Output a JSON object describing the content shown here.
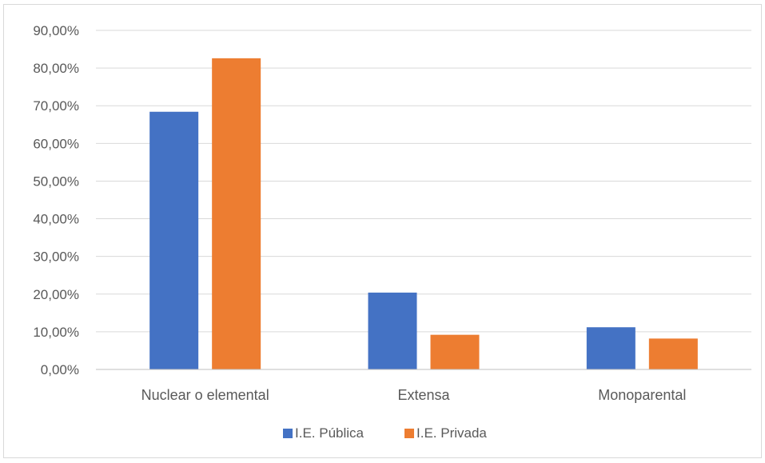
{
  "chart_data": {
    "type": "bar",
    "title": "",
    "xlabel": "",
    "ylabel": "",
    "categories": [
      "Nuclear o elemental",
      "Extensa",
      "Monoparental"
    ],
    "series": [
      {
        "name": "I.E. Pública",
        "color": "#4472c4",
        "values": [
          68.4,
          20.4,
          11.2
        ]
      },
      {
        "name": "I.E. Privada",
        "color": "#ed7d31",
        "values": [
          82.6,
          9.2,
          8.2
        ]
      }
    ],
    "ylim": [
      0,
      90
    ],
    "yticks": [
      0,
      10,
      20,
      30,
      40,
      50,
      60,
      70,
      80,
      90
    ],
    "ytick_labels": [
      "0,00%",
      "10,00%",
      "20,00%",
      "30,00%",
      "40,00%",
      "50,00%",
      "60,00%",
      "70,00%",
      "80,00%",
      "90,00%"
    ],
    "grid": true,
    "legend_position": "bottom",
    "gridline_color": "#d9d9d9",
    "axis_line_color": "#bfbfbf"
  }
}
